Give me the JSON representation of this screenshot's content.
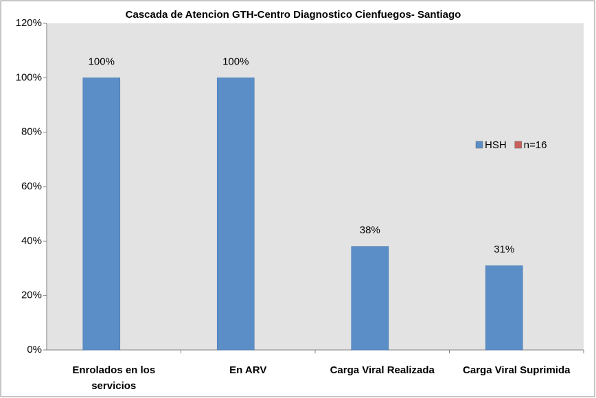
{
  "chart_data": {
    "type": "bar",
    "title": "Cascada de Atencion GTH-Centro Diagnostico Cienfuegos- Santiago",
    "categories": [
      "Enrolados en los servicios",
      "En ARV",
      "Carga Viral Realizada",
      "Carga Viral Suprimida"
    ],
    "series": [
      {
        "name": "HSH",
        "color": "#5b8ec7",
        "values": [
          100,
          100,
          38,
          31
        ],
        "value_labels": [
          "100%",
          "100%",
          "38%",
          "31%"
        ]
      },
      {
        "name": "n=16",
        "color": "#c9605c",
        "values": [
          null,
          null,
          null,
          null
        ]
      }
    ],
    "ylim": [
      0,
      120
    ],
    "yticks": [
      {
        "value": 0,
        "label": "0%"
      },
      {
        "value": 20,
        "label": "20%"
      },
      {
        "value": 40,
        "label": "40%"
      },
      {
        "value": 60,
        "label": "60%"
      },
      {
        "value": 80,
        "label": "80%"
      },
      {
        "value": 100,
        "label": "100%"
      },
      {
        "value": 120,
        "label": "120%"
      }
    ],
    "grid": false,
    "legend": "right"
  }
}
